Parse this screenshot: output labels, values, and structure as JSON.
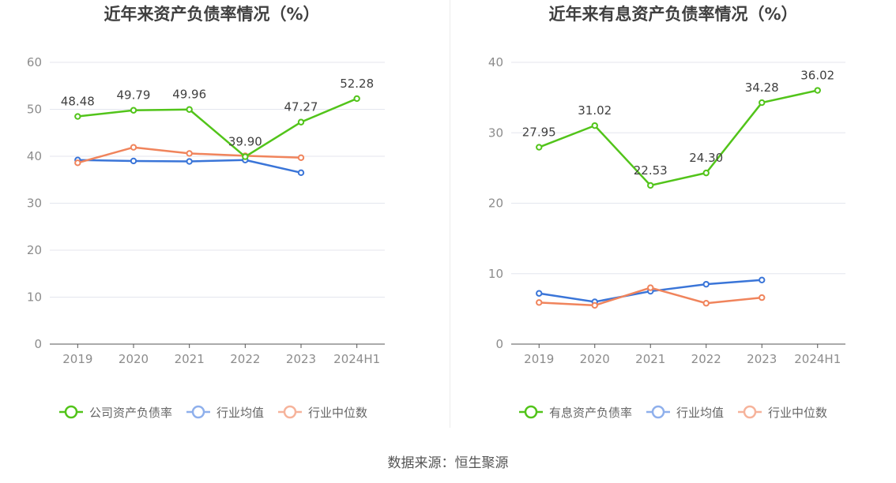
{
  "colors": {
    "main": "#52c41a",
    "avg": "#3a75d8",
    "median": "#f0845c",
    "avg_legend": "#8fb0ec",
    "median_legend": "#f6b39b",
    "grid": "#e4e6ee",
    "axis": "#555555",
    "tick_text": "#8c8c8c",
    "title": "#404040",
    "label": "#404040"
  },
  "source": "数据来源：恒生聚源",
  "chart_data": [
    {
      "type": "line",
      "title": "近年来资产负债率情况（%）",
      "categories": [
        "2019",
        "2020",
        "2021",
        "2022",
        "2023",
        "2024H1"
      ],
      "ylim": [
        0,
        60
      ],
      "yticks": [
        0,
        10,
        20,
        30,
        40,
        50,
        60
      ],
      "grid": true,
      "legend_position": "bottom",
      "series": [
        {
          "name": "公司资产负债率",
          "key": "main",
          "values": [
            48.48,
            49.79,
            49.96,
            39.9,
            47.27,
            52.28
          ],
          "labels": [
            "48.48",
            "49.79",
            "49.96",
            "39.90",
            "47.27",
            "52.28"
          ]
        },
        {
          "name": "行业均值",
          "key": "avg",
          "values": [
            39.2,
            39.0,
            38.9,
            39.2,
            36.5,
            null
          ]
        },
        {
          "name": "行业中位数",
          "key": "median",
          "values": [
            38.6,
            41.9,
            40.6,
            40.1,
            39.7,
            null
          ]
        }
      ]
    },
    {
      "type": "line",
      "title": "近年来有息资产负债率情况（%）",
      "categories": [
        "2019",
        "2020",
        "2021",
        "2022",
        "2023",
        "2024H1"
      ],
      "ylim": [
        0,
        40
      ],
      "yticks": [
        0,
        10,
        20,
        30,
        40
      ],
      "grid": true,
      "legend_position": "bottom",
      "series": [
        {
          "name": "有息资产负债率",
          "key": "main",
          "values": [
            27.95,
            31.02,
            22.53,
            24.3,
            34.28,
            36.02
          ],
          "labels": [
            "27.95",
            "31.02",
            "22.53",
            "24.30",
            "34.28",
            "36.02"
          ]
        },
        {
          "name": "行业均值",
          "key": "avg",
          "values": [
            7.2,
            6.0,
            7.5,
            8.5,
            9.1,
            null
          ]
        },
        {
          "name": "行业中位数",
          "key": "median",
          "values": [
            5.9,
            5.5,
            8.0,
            5.8,
            6.6,
            null
          ]
        }
      ]
    }
  ]
}
